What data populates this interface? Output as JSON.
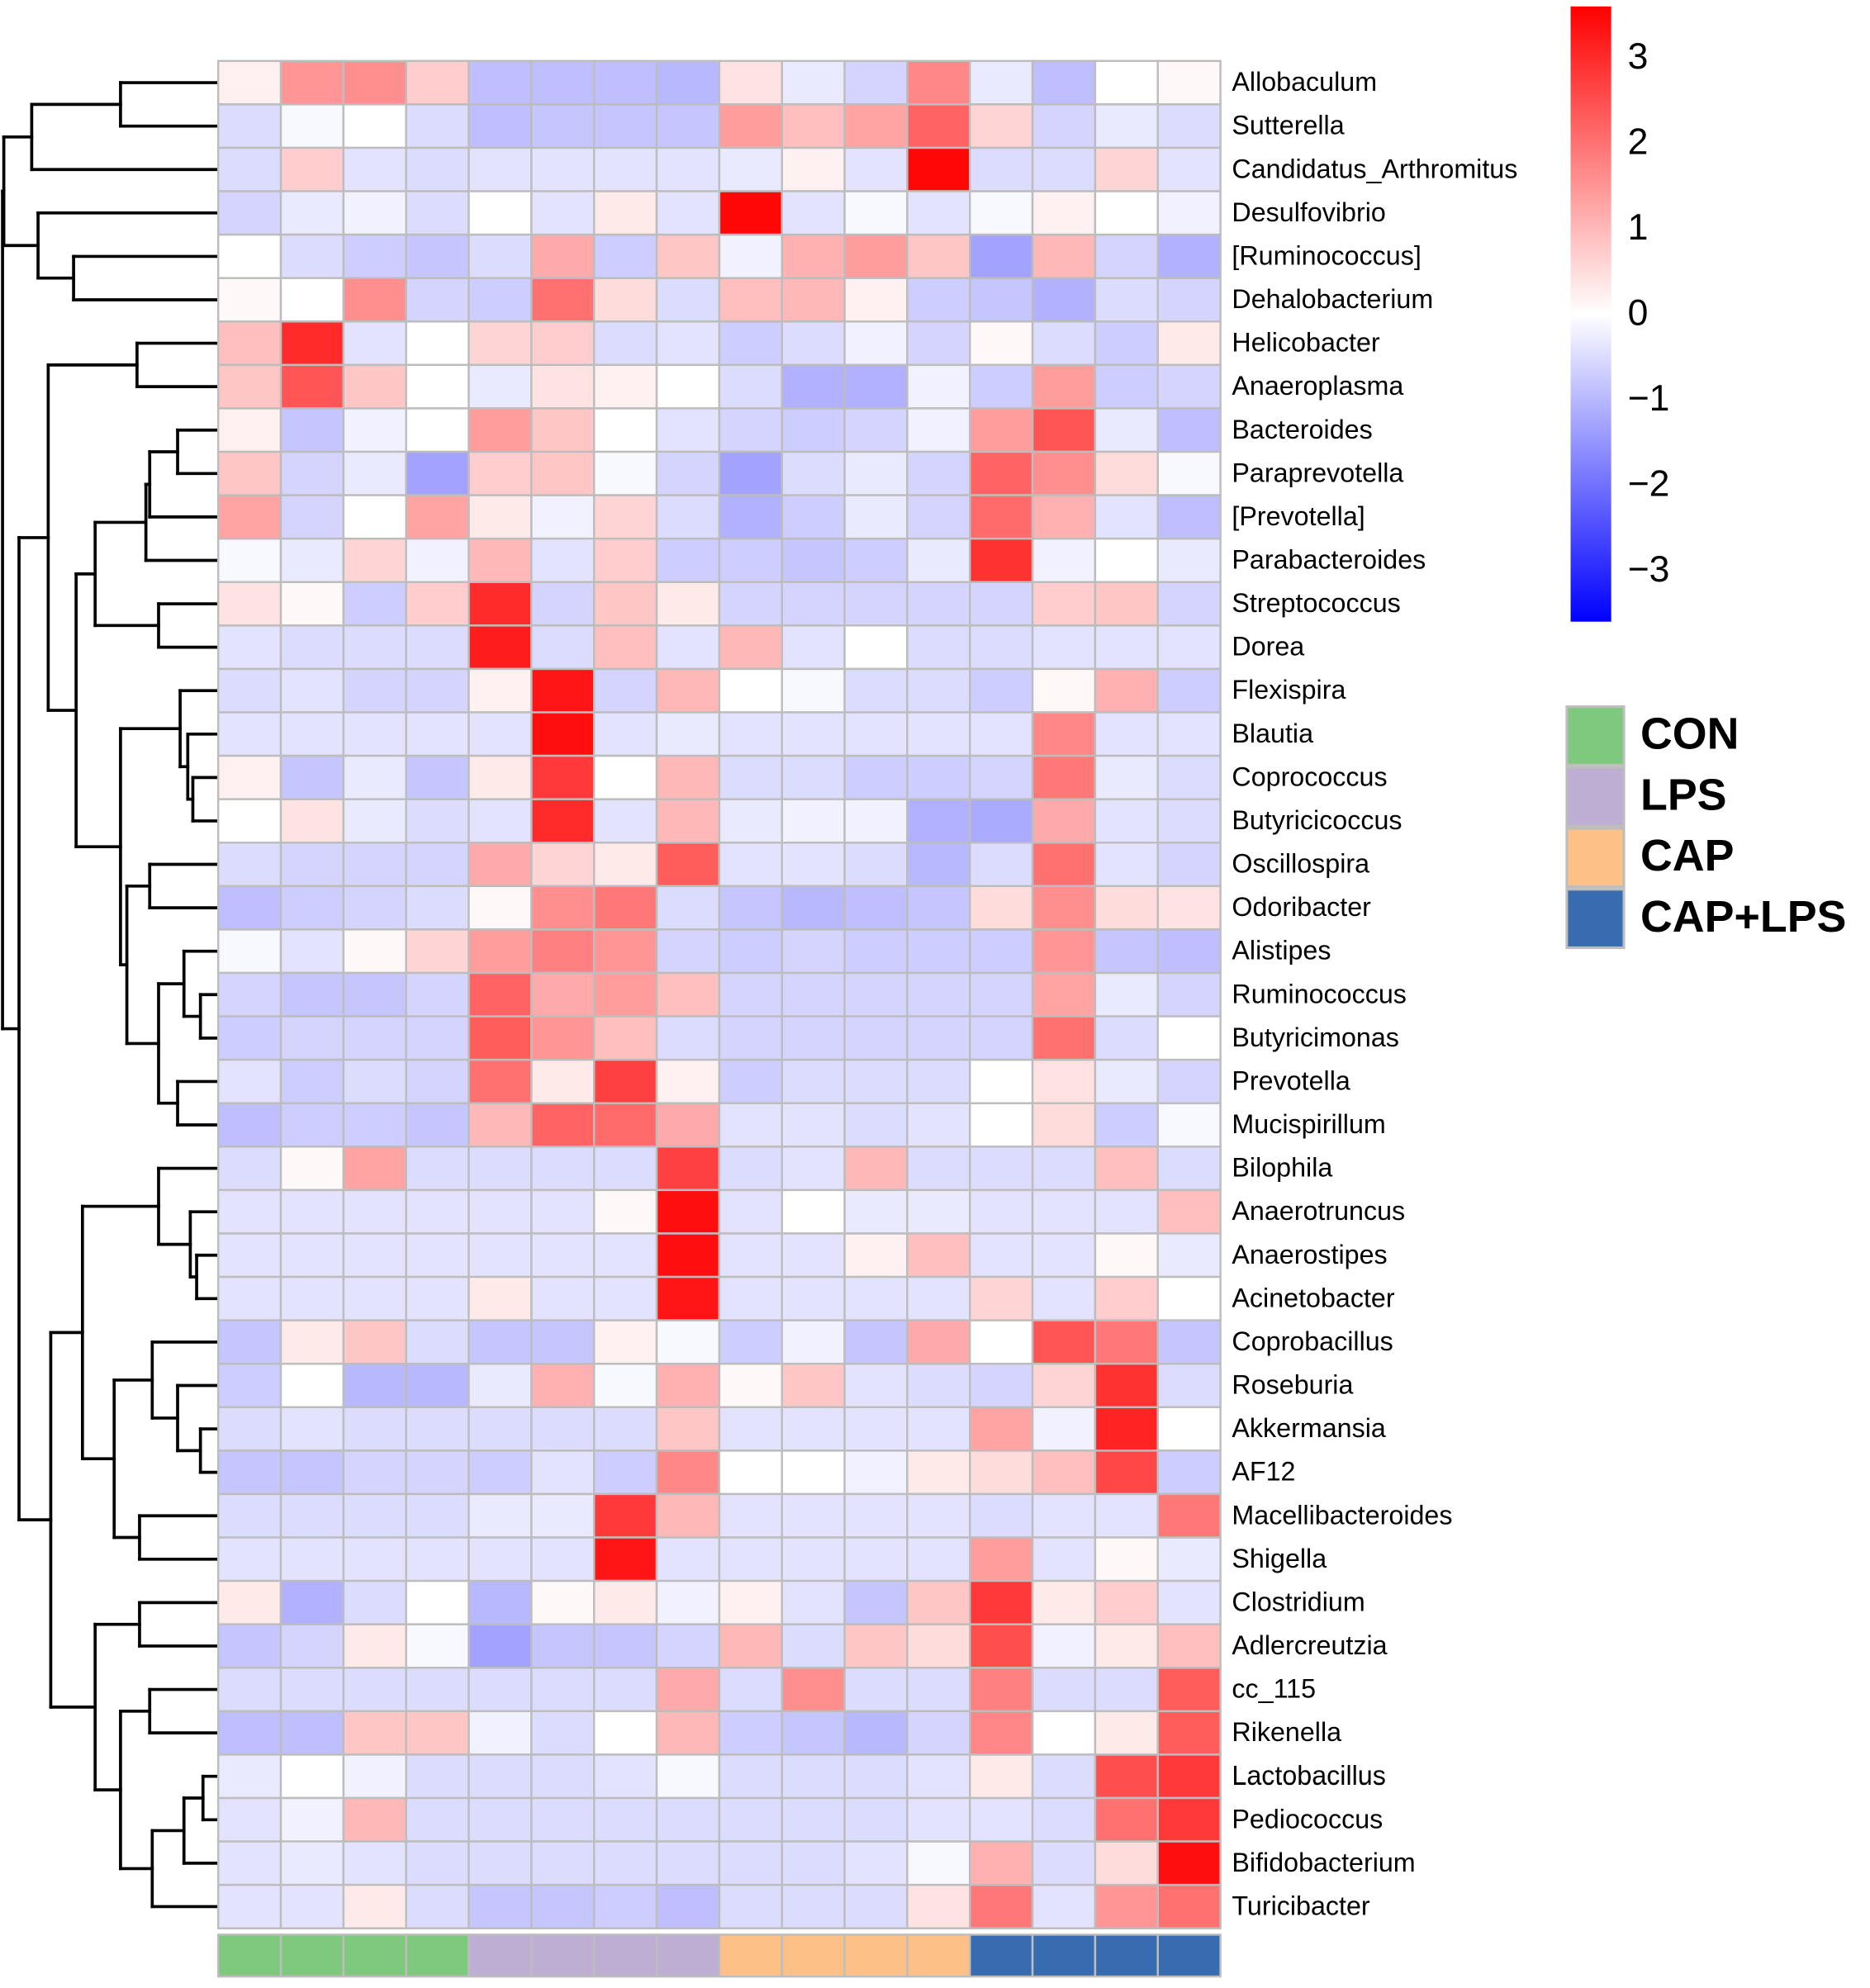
{
  "chart_data": {
    "type": "heatmap",
    "rows": [
      "Allobaculum",
      "Sutterella",
      "Candidatus_Arthromitus",
      "Desulfovibrio",
      "[Ruminococcus]",
      "Dehalobacterium",
      "Helicobacter",
      "Anaeroplasma",
      "Bacteroides",
      "Paraprevotella",
      "[Prevotella]",
      "Parabacteroides",
      "Streptococcus",
      "Dorea",
      "Flexispira",
      "Blautia",
      "Coprococcus",
      "Butyricicoccus",
      "Oscillospira",
      "Odoribacter",
      "Alistipes",
      "Ruminococcus",
      "Butyricimonas",
      "Prevotella",
      "Mucispirillum",
      "Bilophila",
      "Anaerotruncus",
      "Anaerostipes",
      "Acinetobacter",
      "Coprobacillus",
      "Roseburia",
      "Akkermansia",
      "AF12",
      "Macellibacteroides",
      "Shigella",
      "Clostridium",
      "Adlercreutzia",
      "cc_115",
      "Rikenella",
      "Lactobacillus",
      "Pediococcus",
      "Bifidobacterium",
      "Turicibacter"
    ],
    "values": [
      [
        0.2,
        1.5,
        1.6,
        0.7,
        -0.9,
        -0.9,
        -0.9,
        -1.0,
        0.4,
        -0.3,
        -0.6,
        1.7,
        -0.3,
        -0.9,
        0,
        0.1
      ],
      [
        -0.5,
        -0.1,
        0,
        -0.5,
        -0.9,
        -0.8,
        -0.8,
        -0.8,
        1.4,
        0.9,
        1.3,
        2.2,
        0.6,
        -0.6,
        -0.3,
        -0.5
      ],
      [
        -0.5,
        0.7,
        -0.4,
        -0.5,
        -0.4,
        -0.4,
        -0.4,
        -0.4,
        -0.3,
        0.2,
        -0.4,
        3.5,
        -0.5,
        -0.5,
        0.6,
        -0.4
      ],
      [
        -0.6,
        -0.3,
        -0.2,
        -0.5,
        0,
        -0.4,
        0.3,
        -0.4,
        3.5,
        -0.4,
        -0.1,
        -0.4,
        -0.1,
        0.2,
        0,
        -0.2
      ],
      [
        0,
        -0.5,
        -0.7,
        -0.8,
        -0.5,
        1.2,
        -0.7,
        0.8,
        -0.2,
        1.1,
        1.4,
        0.8,
        -1.3,
        1.0,
        -0.6,
        -1.1
      ],
      [
        0.1,
        0,
        1.6,
        -0.6,
        -0.7,
        2.0,
        0.5,
        -0.5,
        0.9,
        1.0,
        0.2,
        -0.7,
        -0.8,
        -1.1,
        -0.5,
        -0.6
      ],
      [
        0.9,
        3.0,
        -0.4,
        0,
        0.6,
        0.7,
        -0.5,
        -0.4,
        -0.7,
        -0.5,
        -0.2,
        -0.6,
        0.1,
        -0.5,
        -0.7,
        0.3
      ],
      [
        0.8,
        2.4,
        0.8,
        0,
        -0.3,
        0.4,
        0.2,
        0,
        -0.5,
        -1.1,
        -1.1,
        -0.2,
        -0.7,
        1.4,
        -0.7,
        -0.6
      ],
      [
        0.2,
        -0.8,
        -0.2,
        0,
        1.4,
        0.8,
        0,
        -0.4,
        -0.6,
        -0.7,
        -0.6,
        -0.2,
        1.4,
        2.4,
        -0.3,
        -0.9
      ],
      [
        0.8,
        -0.6,
        -0.3,
        -1.3,
        0.7,
        0.8,
        -0.1,
        -0.6,
        -1.3,
        -0.5,
        -0.3,
        -0.6,
        2.2,
        1.6,
        0.5,
        -0.1
      ],
      [
        1.3,
        -0.6,
        0,
        1.3,
        0.3,
        -0.2,
        0.6,
        -0.5,
        -1.1,
        -0.7,
        -0.3,
        -0.6,
        2.1,
        1.1,
        -0.4,
        -0.9
      ],
      [
        -0.1,
        -0.3,
        0.6,
        -0.2,
        1.0,
        -0.4,
        0.7,
        -0.7,
        -0.7,
        -0.8,
        -0.7,
        -0.3,
        2.9,
        -0.2,
        0,
        -0.3
      ],
      [
        0.4,
        0.1,
        -0.7,
        0.7,
        3.0,
        -0.6,
        0.8,
        0.3,
        -0.6,
        -0.6,
        -0.6,
        -0.6,
        -0.6,
        0.7,
        0.8,
        -0.6
      ],
      [
        -0.4,
        -0.5,
        -0.5,
        -0.5,
        3.2,
        -0.5,
        0.9,
        -0.4,
        1.0,
        -0.4,
        0,
        -0.5,
        -0.5,
        -0.4,
        -0.4,
        -0.4
      ],
      [
        -0.5,
        -0.4,
        -0.6,
        -0.6,
        0.2,
        3.3,
        -0.6,
        1.0,
        0,
        -0.1,
        -0.5,
        -0.5,
        -0.7,
        0.1,
        1.1,
        -0.7
      ],
      [
        -0.4,
        -0.4,
        -0.4,
        -0.4,
        -0.4,
        3.4,
        -0.4,
        -0.3,
        -0.4,
        -0.4,
        -0.4,
        -0.4,
        -0.4,
        1.7,
        -0.4,
        -0.4
      ],
      [
        0.2,
        -0.8,
        -0.3,
        -0.8,
        0.3,
        2.8,
        0,
        1.0,
        -0.5,
        -0.5,
        -0.7,
        -0.7,
        -0.6,
        1.9,
        -0.3,
        -0.5
      ],
      [
        0,
        0.4,
        -0.3,
        -0.5,
        -0.4,
        3.0,
        -0.4,
        1.0,
        -0.3,
        -0.2,
        -0.2,
        -1.1,
        -1.2,
        1.2,
        -0.4,
        -0.5
      ],
      [
        -0.5,
        -0.6,
        -0.6,
        -0.6,
        1.2,
        0.6,
        0.3,
        2.3,
        -0.4,
        -0.4,
        -0.5,
        -1.0,
        -0.5,
        2.0,
        -0.4,
        -0.6
      ],
      [
        -0.9,
        -0.7,
        -0.6,
        -0.5,
        0.1,
        1.6,
        1.9,
        -0.5,
        -0.8,
        -1.0,
        -0.9,
        -0.8,
        0.5,
        1.6,
        0.5,
        0.4
      ],
      [
        -0.1,
        -0.4,
        0.1,
        0.6,
        1.4,
        1.8,
        1.5,
        -0.6,
        -0.7,
        -0.6,
        -0.7,
        -0.7,
        -0.7,
        1.5,
        -0.8,
        -0.9
      ],
      [
        -0.6,
        -0.8,
        -0.8,
        -0.6,
        2.2,
        1.2,
        1.4,
        0.9,
        -0.6,
        -0.6,
        -0.6,
        -0.6,
        -0.6,
        1.3,
        -0.3,
        -0.6
      ],
      [
        -0.7,
        -0.6,
        -0.6,
        -0.6,
        2.3,
        1.5,
        0.9,
        -0.5,
        -0.6,
        -0.6,
        -0.6,
        -0.6,
        -0.6,
        2.0,
        -0.5,
        0
      ],
      [
        -0.4,
        -0.7,
        -0.5,
        -0.6,
        2.0,
        0.3,
        2.7,
        0.2,
        -0.7,
        -0.5,
        -0.5,
        -0.5,
        0,
        0.4,
        -0.3,
        -0.6
      ],
      [
        -0.9,
        -0.7,
        -0.7,
        -0.8,
        1.0,
        2.2,
        2.1,
        1.2,
        -0.4,
        -0.4,
        -0.5,
        -0.4,
        0,
        0.5,
        -0.7,
        -0.1
      ],
      [
        -0.5,
        0.1,
        1.3,
        -0.5,
        -0.5,
        -0.5,
        -0.5,
        2.7,
        -0.5,
        -0.4,
        1.0,
        -0.5,
        -0.5,
        -0.5,
        0.9,
        -0.5
      ],
      [
        -0.4,
        -0.4,
        -0.4,
        -0.4,
        -0.4,
        -0.4,
        0.1,
        3.4,
        -0.4,
        0,
        -0.3,
        -0.3,
        -0.4,
        -0.4,
        -0.4,
        0.9
      ],
      [
        -0.4,
        -0.4,
        -0.4,
        -0.4,
        -0.4,
        -0.4,
        -0.4,
        3.4,
        -0.4,
        -0.4,
        0.2,
        0.9,
        -0.4,
        -0.4,
        0.1,
        -0.3
      ],
      [
        -0.4,
        -0.4,
        -0.4,
        -0.4,
        0.3,
        -0.4,
        -0.4,
        3.3,
        -0.4,
        -0.4,
        -0.4,
        -0.4,
        0.6,
        -0.4,
        0.7,
        0
      ],
      [
        -0.8,
        0.3,
        0.8,
        -0.5,
        -0.8,
        -0.8,
        0.2,
        -0.1,
        -0.7,
        -0.2,
        -0.8,
        1.2,
        0,
        2.4,
        1.9,
        -0.8
      ],
      [
        -0.7,
        0,
        -1.0,
        -1.0,
        -0.3,
        1.1,
        -0.1,
        1.1,
        0.1,
        0.8,
        -0.4,
        -0.5,
        -0.6,
        0.6,
        2.9,
        -0.5
      ],
      [
        -0.5,
        -0.4,
        -0.5,
        -0.5,
        -0.5,
        -0.5,
        -0.5,
        0.8,
        -0.4,
        -0.4,
        -0.4,
        -0.4,
        1.3,
        -0.2,
        3.1,
        0
      ],
      [
        -0.8,
        -0.8,
        -0.6,
        -0.6,
        -0.7,
        -0.4,
        -0.7,
        1.7,
        0,
        0,
        -0.2,
        0.3,
        0.5,
        0.9,
        2.6,
        -0.7
      ],
      [
        -0.5,
        -0.5,
        -0.5,
        -0.5,
        -0.3,
        -0.3,
        2.8,
        1.0,
        -0.4,
        -0.4,
        -0.4,
        -0.4,
        -0.5,
        -0.4,
        -0.4,
        1.9
      ],
      [
        -0.4,
        -0.4,
        -0.4,
        -0.4,
        -0.4,
        -0.4,
        3.3,
        -0.4,
        -0.4,
        -0.4,
        -0.4,
        -0.4,
        1.4,
        -0.4,
        0.1,
        -0.3
      ],
      [
        0.3,
        -1.1,
        -0.5,
        0,
        -1.0,
        0.1,
        0.3,
        -0.2,
        0.2,
        -0.4,
        -0.8,
        0.8,
        2.8,
        0.3,
        0.7,
        -0.4
      ],
      [
        -0.8,
        -0.6,
        0.3,
        -0.1,
        -1.3,
        -0.8,
        -0.8,
        -0.6,
        1.0,
        -0.5,
        0.8,
        0.5,
        2.5,
        -0.2,
        0.3,
        0.9
      ],
      [
        -0.5,
        -0.5,
        -0.5,
        -0.5,
        -0.5,
        -0.5,
        -0.5,
        1.2,
        -0.5,
        1.6,
        -0.5,
        -0.5,
        1.8,
        -0.5,
        -0.5,
        2.3
      ],
      [
        -0.9,
        -0.9,
        0.8,
        0.8,
        -0.2,
        -0.5,
        0,
        1.0,
        -0.7,
        -0.8,
        -1.0,
        -0.6,
        1.7,
        0,
        0.3,
        2.3
      ],
      [
        -0.3,
        0,
        -0.2,
        -0.5,
        -0.5,
        -0.5,
        -0.4,
        -0.1,
        -0.5,
        -0.5,
        -0.5,
        -0.4,
        0.3,
        -0.5,
        2.5,
        2.8
      ],
      [
        -0.4,
        -0.2,
        1.0,
        -0.5,
        -0.5,
        -0.5,
        -0.5,
        -0.5,
        -0.5,
        -0.5,
        -0.5,
        -0.4,
        -0.4,
        -0.5,
        2.0,
        2.8
      ],
      [
        -0.4,
        -0.3,
        -0.4,
        -0.5,
        -0.5,
        -0.5,
        -0.5,
        -0.5,
        -0.5,
        -0.5,
        -0.4,
        -0.1,
        1.1,
        -0.5,
        0.5,
        3.4
      ],
      [
        -0.4,
        -0.4,
        0.3,
        -0.5,
        -0.8,
        -0.8,
        -0.7,
        -0.9,
        -0.5,
        -0.5,
        -0.5,
        0.4,
        1.9,
        -0.4,
        1.5,
        2.0
      ]
    ],
    "clim": [
      -3.6,
      3.6
    ],
    "colors": [
      "#0000ff",
      "#ffffff",
      "#ff0000"
    ],
    "colorbar_ticks": [
      3,
      2,
      1,
      0,
      {
        "value": -1,
        "label": "−1"
      },
      {
        "value": -2,
        "label": "−2"
      },
      {
        "value": -3,
        "label": "−3"
      }
    ],
    "legend": [
      {
        "name": "CON",
        "color": "#7fc97f"
      },
      {
        "name": "LPS",
        "color": "#beaed4"
      },
      {
        "name": "CAP",
        "color": "#fdc086"
      },
      {
        "name": "CAP+LPS",
        "color": "#386cb0"
      }
    ],
    "column_annotation": [
      "CON",
      "CON",
      "CON",
      "CON",
      "LPS",
      "LPS",
      "LPS",
      "LPS",
      "CAP",
      "CAP",
      "CAP",
      "CAP",
      "CAP+LPS",
      "CAP+LPS",
      "CAP+LPS",
      "CAP+LPS"
    ]
  }
}
